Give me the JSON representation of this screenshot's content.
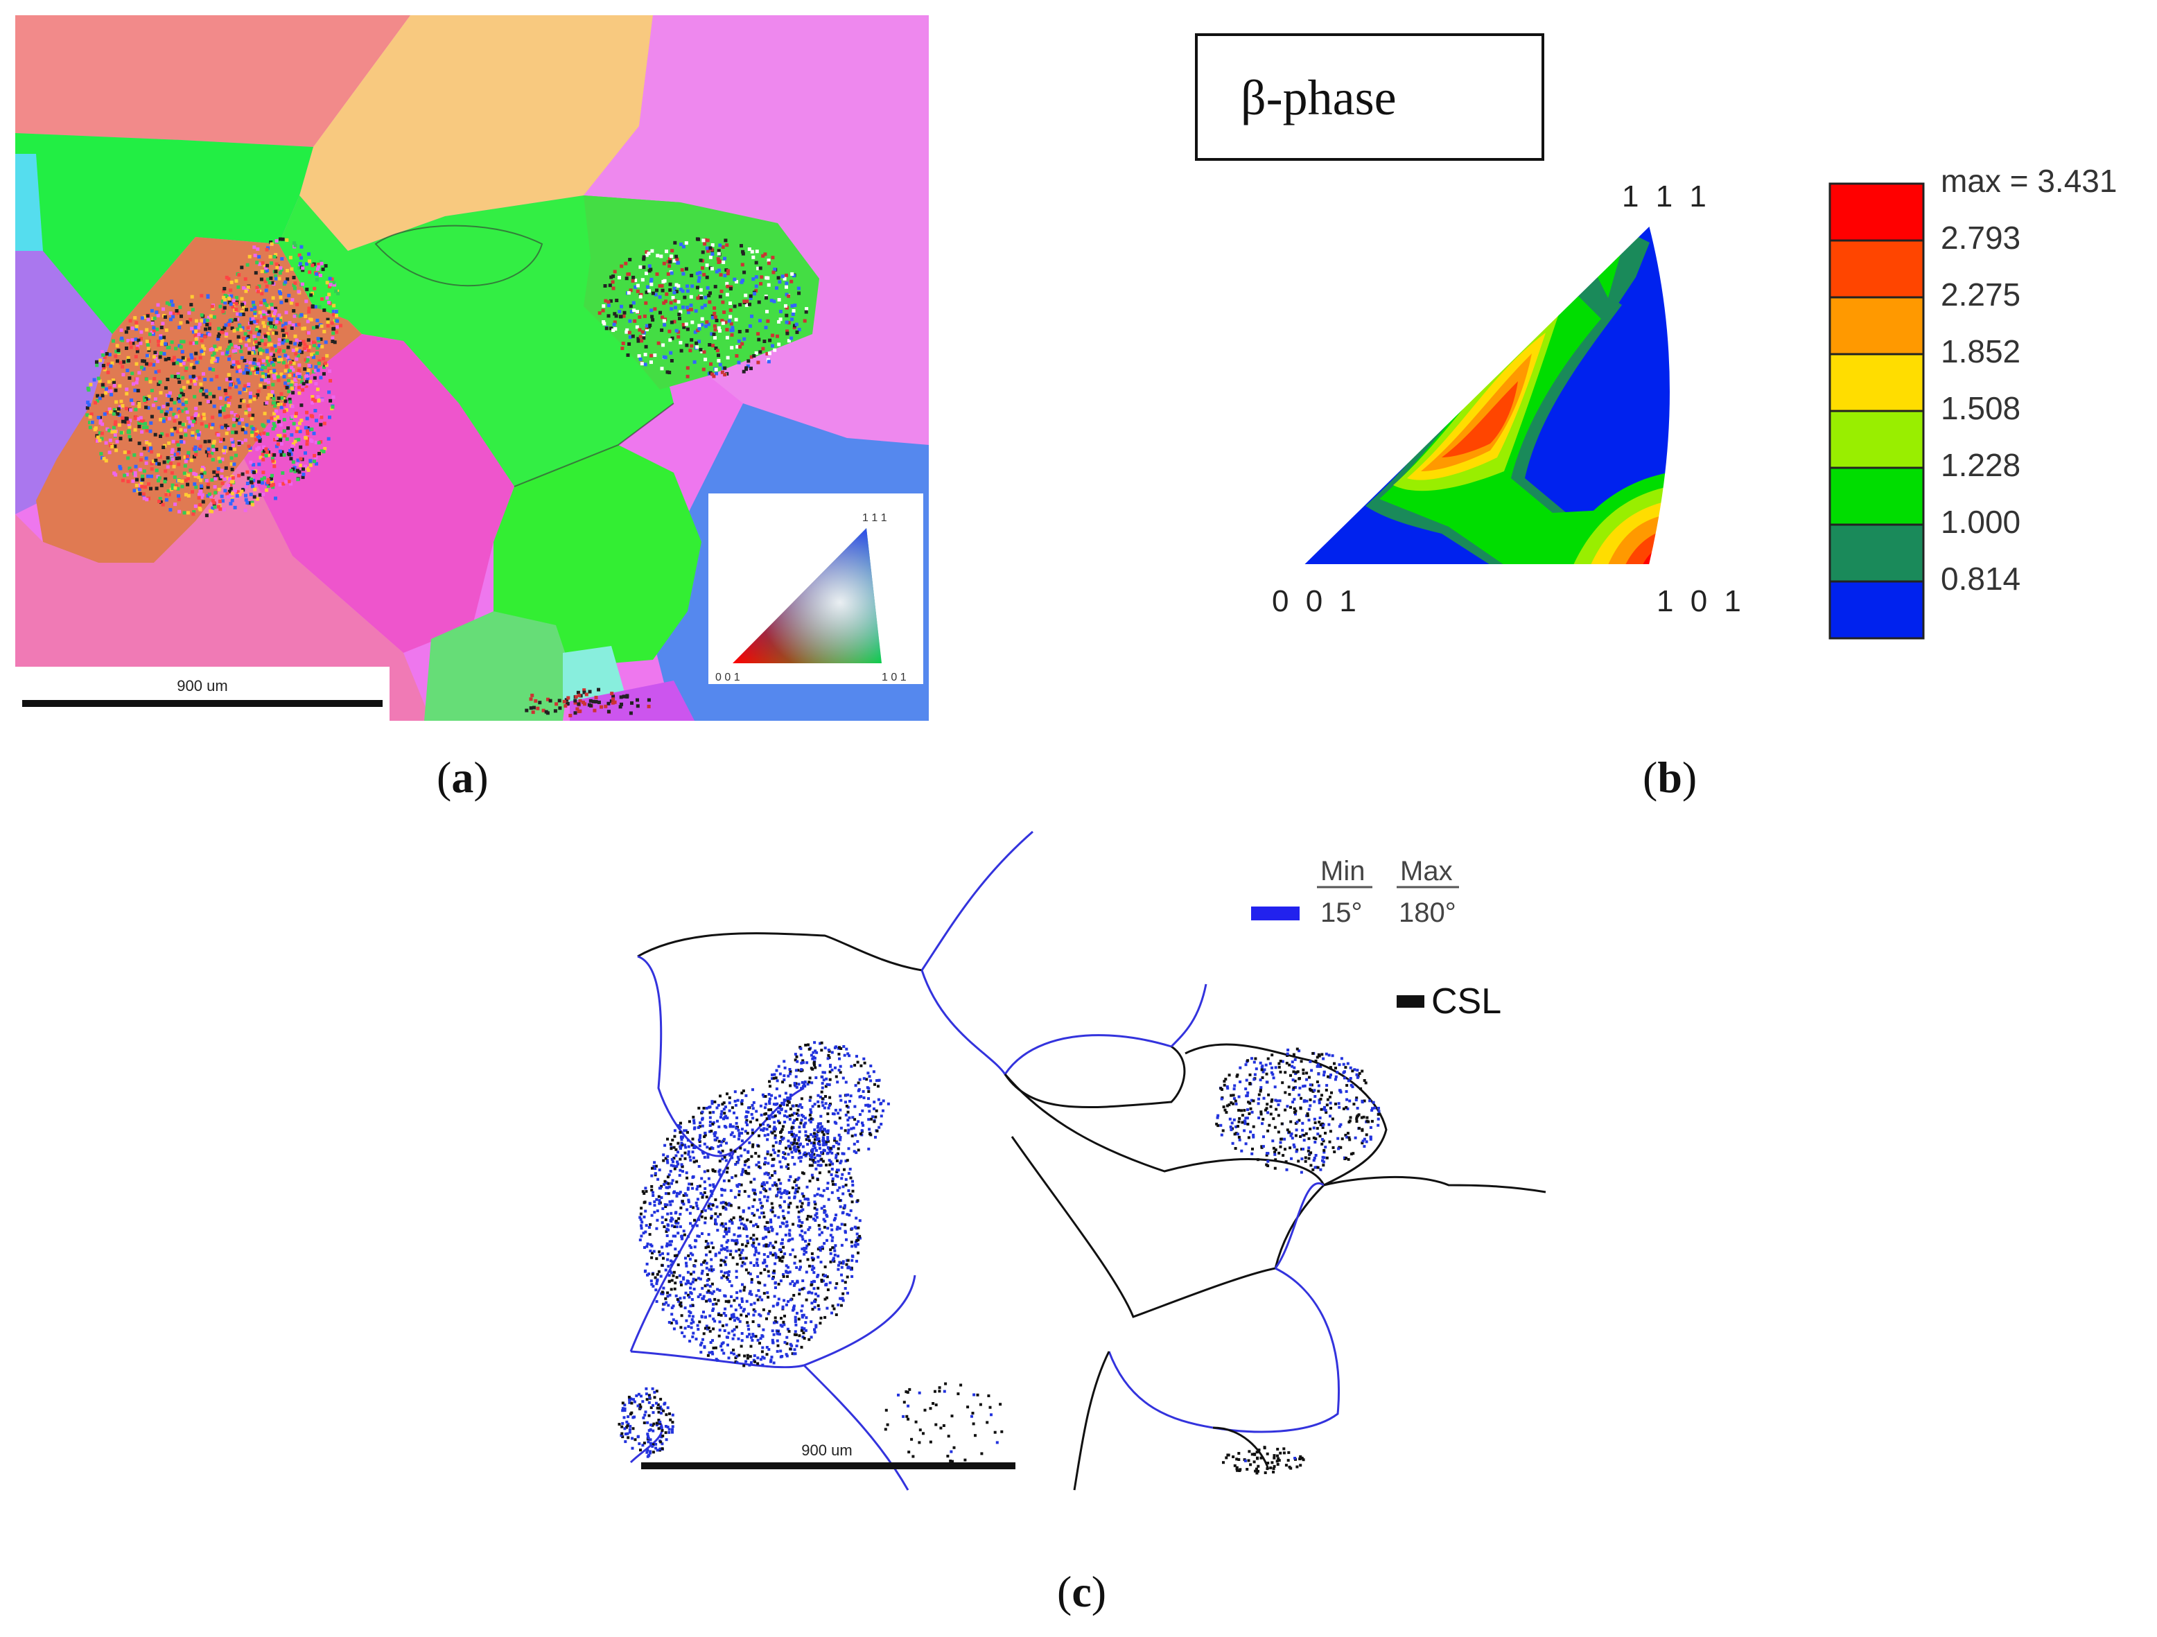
{
  "panel_a": {
    "caption_letter": "a",
    "scale_bar_label": "900 um",
    "ipf_key": {
      "top": "1 1 1",
      "bottom_left": "0 0 1",
      "bottom_right": "1 0 1"
    }
  },
  "panel_b": {
    "caption_letter": "b",
    "title": "β-phase",
    "triangle_labels": {
      "top": "1 1 1",
      "bottom_left": "0 0 1",
      "bottom_right": "1 0 1"
    },
    "legend": [
      {
        "label": "max = 3.431",
        "color": "#ff0000"
      },
      {
        "label": "2.793",
        "color": "#ff4500"
      },
      {
        "label": "2.275",
        "color": "#ff9900"
      },
      {
        "label": "1.852",
        "color": "#ffdd00"
      },
      {
        "label": "1.508",
        "color": "#99ee00"
      },
      {
        "label": "1.228",
        "color": "#00dd00"
      },
      {
        "label": "1.000",
        "color": "#1a8a5a"
      },
      {
        "label": "0.814",
        "color": "#0022ee"
      }
    ]
  },
  "panel_c": {
    "caption_letter": "c",
    "scale_bar_label": "900 um",
    "legend": {
      "min_header": "Min",
      "max_header": "Max",
      "min_value": "15°",
      "max_value": "180°",
      "csl_label": "CSL"
    },
    "colors": {
      "boundary_blue": "#3333dd",
      "csl_black": "#111111"
    }
  }
}
